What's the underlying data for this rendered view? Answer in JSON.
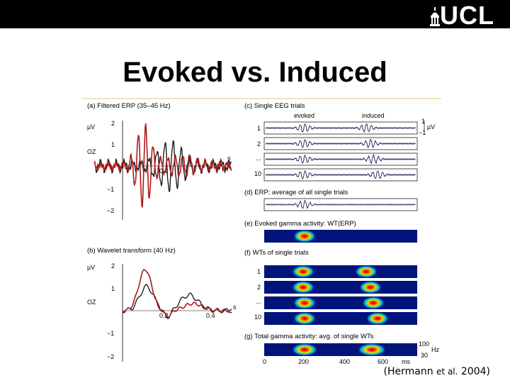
{
  "header": {
    "logo_text": "UCL",
    "logo_icon": "ucl-dome-icon"
  },
  "slide": {
    "title": "Evoked vs. Induced",
    "citation_prefix": "(Hermann ",
    "citation_etal": "et al.",
    "citation_suffix": " 2004)"
  },
  "figure": {
    "panel_a": {
      "label": "(a)  Filtered ERP (35–45 Hz)",
      "unit": "µV",
      "channel": "OZ",
      "yticks": [
        "2",
        "1",
        "−1",
        "−2"
      ],
      "s_label": "s",
      "xtick": "0.2"
    },
    "panel_b": {
      "label": "(b)  Wavelet transform (40 Hz)",
      "unit": "µV",
      "channel": "OZ",
      "yticks": [
        "2",
        "1",
        "−1",
        "−2"
      ],
      "s_label": "s",
      "xticks": [
        "0.2",
        "0.4"
      ]
    },
    "panel_c": {
      "label": "(c)  Single EEG trials",
      "evoked": "evoked",
      "induced": "induced",
      "trials": [
        "1",
        "2",
        "...",
        "10"
      ],
      "scale_top": "1",
      "scale_bot": "−1",
      "scale_unit": "µV"
    },
    "panel_d": {
      "label": "(d)  ERP: average of all single trials"
    },
    "panel_e": {
      "label": "(e)  Evoked gamma activity: WT(ERP)"
    },
    "panel_f": {
      "label": "(f)  WTs of single trials",
      "trials": [
        "1",
        "2",
        "...",
        "10"
      ]
    },
    "panel_g": {
      "label": "(g)  Total gamma activity: avg. of single WTs",
      "freq_top": "100",
      "freq_bot": "30",
      "freq_unit": "Hz",
      "xticks": [
        "0",
        "200",
        "400",
        "600"
      ],
      "xunit": "ms"
    }
  },
  "colors": {
    "black_trace": "#111111",
    "red_trace": "#b01818",
    "spectro_bg": "#00147a"
  }
}
